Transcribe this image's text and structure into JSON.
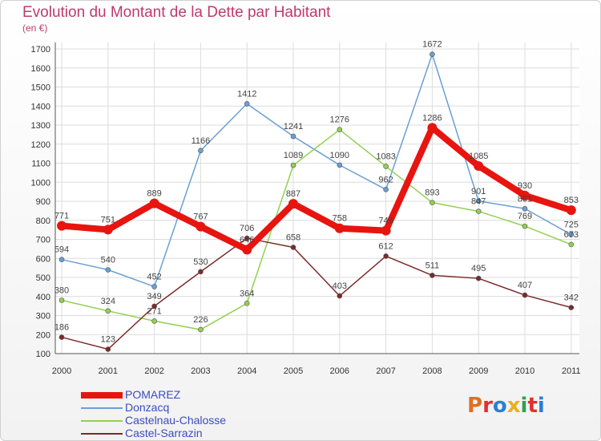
{
  "chart_data": {
    "type": "line",
    "title": "Evolution du Montant de la Dette par Habitant",
    "unit": "(en €)",
    "xlabel": "",
    "ylabel": "",
    "categories": [
      "2000",
      "2001",
      "2002",
      "2003",
      "2004",
      "2005",
      "2006",
      "2007",
      "2008",
      "2009",
      "2010",
      "2011"
    ],
    "ylim": [
      100,
      1700
    ],
    "yticks": [
      100,
      200,
      300,
      400,
      500,
      600,
      700,
      800,
      900,
      1000,
      1100,
      1200,
      1300,
      1400,
      1500,
      1600,
      1700
    ],
    "series": [
      {
        "name": "POMAREZ",
        "color": "#e8140f",
        "emphasis": true,
        "values": [
          771,
          751,
          889,
          767,
          646,
          887,
          758,
          746,
          1286,
          1085,
          930,
          853
        ]
      },
      {
        "name": "Donzacq",
        "color": "#6b9fd4",
        "emphasis": false,
        "values": [
          594,
          540,
          452,
          1166,
          1412,
          1241,
          1090,
          962,
          1672,
          901,
          861,
          725
        ]
      },
      {
        "name": "Castelnau-Chalosse",
        "color": "#92d050",
        "emphasis": false,
        "values": [
          380,
          324,
          271,
          226,
          364,
          1089,
          1276,
          1083,
          893,
          847,
          769,
          673
        ]
      },
      {
        "name": "Castel-Sarrazin",
        "color": "#7b2a2a",
        "emphasis": false,
        "values": [
          186,
          123,
          349,
          530,
          706,
          658,
          403,
          612,
          511,
          495,
          407,
          342
        ]
      }
    ]
  },
  "logo": {
    "text": "Proxiti",
    "colors": [
      "#e07020",
      "#e03030",
      "#2a7fd4",
      "#e8b020",
      "#30a050",
      "#e03030",
      "#2a7fd4"
    ]
  }
}
